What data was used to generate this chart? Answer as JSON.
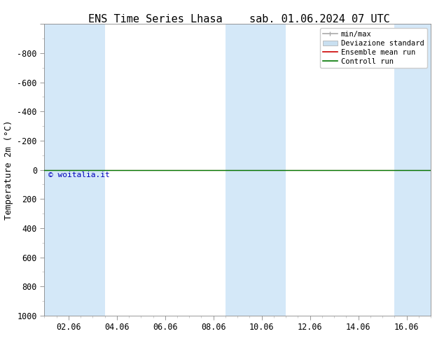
{
  "title_left": "ENS Time Series Lhasa",
  "title_right": "sab. 01.06.2024 07 UTC",
  "ylabel": "Temperature 2m (°C)",
  "ylim_bottom": 1000,
  "ylim_top": -1000,
  "yticks": [
    -1000,
    -800,
    -600,
    -400,
    -200,
    0,
    200,
    400,
    600,
    800,
    1000
  ],
  "ytick_labels": [
    "",
    "-800",
    "-600",
    "-400",
    "-200",
    "0",
    "200",
    "400",
    "600",
    "800",
    "1000"
  ],
  "xtick_positions": [
    1,
    3,
    5,
    7,
    9,
    11,
    13,
    15
  ],
  "xtick_labels": [
    "02.06",
    "04.06",
    "06.06",
    "08.06",
    "10.06",
    "12.06",
    "14.06",
    "16.06"
  ],
  "xlim": [
    0,
    16
  ],
  "background_color": "#ffffff",
  "plot_bg_color": "#ffffff",
  "band_color": "#d4e8f8",
  "band_ranges": [
    [
      0,
      2.5
    ],
    [
      7.5,
      10
    ],
    [
      14.5,
      16
    ]
  ],
  "green_line_color": "#007700",
  "red_line_color": "#cc0000",
  "watermark": "© woitalia.it",
  "watermark_color": "#0000bb",
  "legend_labels": [
    "min/max",
    "Deviazione standard",
    "Ensemble mean run",
    "Controll run"
  ],
  "legend_line_colors": [
    "#aaaaaa",
    "#aaaaaa",
    "#cc0000",
    "#007700"
  ],
  "title_fontsize": 11,
  "axis_fontsize": 9,
  "tick_fontsize": 8.5
}
